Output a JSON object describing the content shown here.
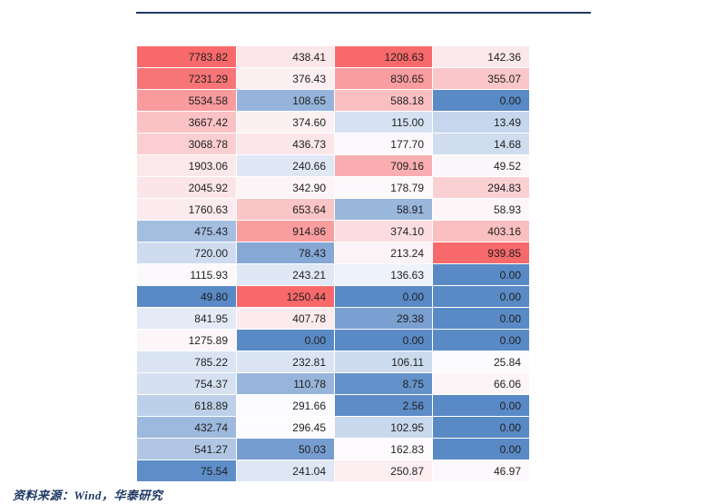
{
  "accent": {
    "divider_color": "#1f3864",
    "footer_color": "#1f3864",
    "cell_text_color": "#1f1f1f"
  },
  "footer": {
    "source": "资料来源：Wind，华泰研究"
  },
  "chart_data": {
    "type": "heatmap",
    "rows": [
      [
        7783.82,
        438.41,
        1208.63,
        142.36
      ],
      [
        7231.29,
        376.43,
        830.65,
        355.07
      ],
      [
        5534.58,
        108.65,
        588.18,
        0.0
      ],
      [
        3667.42,
        374.6,
        115.0,
        13.49
      ],
      [
        3068.78,
        436.73,
        177.7,
        14.68
      ],
      [
        1903.06,
        240.66,
        709.16,
        49.52
      ],
      [
        2045.92,
        342.9,
        178.79,
        294.83
      ],
      [
        1760.63,
        653.64,
        58.91,
        58.93
      ],
      [
        475.43,
        914.86,
        374.1,
        403.16
      ],
      [
        720.0,
        78.43,
        213.24,
        939.85
      ],
      [
        1115.93,
        243.21,
        136.63,
        0.0
      ],
      [
        49.8,
        1250.44,
        0.0,
        0.0
      ],
      [
        841.95,
        407.78,
        29.38,
        0.0
      ],
      [
        1275.89,
        0.0,
        0.0,
        0.0
      ],
      [
        785.22,
        232.81,
        106.11,
        25.84
      ],
      [
        754.37,
        110.78,
        8.75,
        66.06
      ],
      [
        618.89,
        291.66,
        2.56,
        0.0
      ],
      [
        432.74,
        296.45,
        102.95,
        0.0
      ],
      [
        541.27,
        50.03,
        162.83,
        0.0
      ],
      [
        75.54,
        241.04,
        250.87,
        46.97
      ]
    ],
    "value_format": "0.00",
    "color_scale": {
      "scope": "per-column",
      "midpoint": "median",
      "min_color": "#5A8AC6",
      "mid_color": "#FCFCFF",
      "max_color": "#F8696B"
    },
    "title": "",
    "legend": null,
    "grid": "white-1px-cell-borders"
  }
}
